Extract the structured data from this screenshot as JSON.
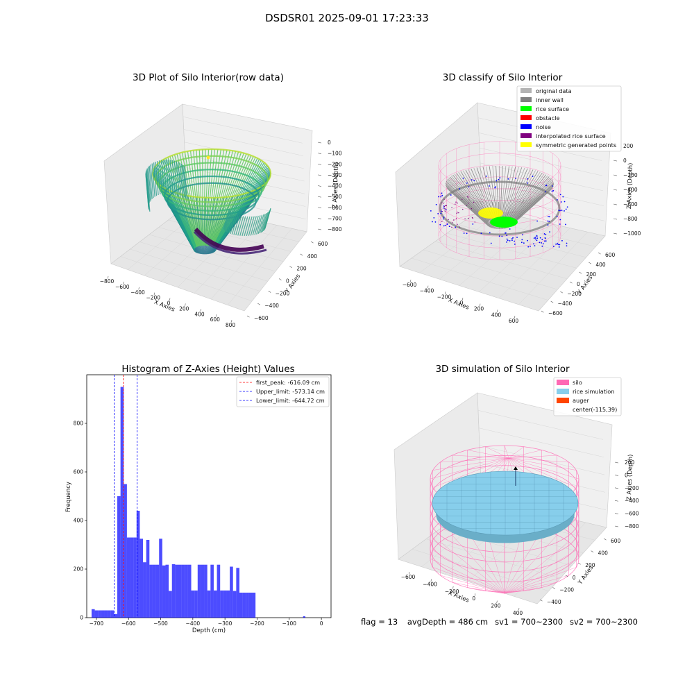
{
  "suptitle": "DSDSR01 2025-09-01 17:23:33",
  "footer": {
    "flag": "flag = 13",
    "avg_depth": "avgDepth = 486 cm",
    "sv1": "sv1 = 700~2300",
    "sv2": "sv2 = 700~2300"
  },
  "chart_data": [
    {
      "type": "scatter",
      "projection": "3d",
      "title": "3D Plot of Silo Interior(row data)",
      "xlabel": "X Axies",
      "ylabel": "Y Axies",
      "zlabel": "Z Axies (Depth)",
      "x_ticks": [
        "−800",
        "−600",
        "−400",
        "−200",
        "0",
        "200",
        "400",
        "600",
        "800"
      ],
      "y_ticks": [
        "−600",
        "−400",
        "−200",
        "0",
        "200",
        "400",
        "600"
      ],
      "z_ticks": [
        "0",
        "−100",
        "−200",
        "−300",
        "−400",
        "−500",
        "−600",
        "−700",
        "−800"
      ],
      "xlim": [
        -800,
        800
      ],
      "ylim": [
        -600,
        600
      ],
      "zlim": [
        -800,
        0
      ],
      "colormap": "viridis"
    },
    {
      "type": "scatter",
      "projection": "3d",
      "title": "3D classify of Silo Interior",
      "legend": [
        {
          "label": "original data",
          "color": "#b3b3b3"
        },
        {
          "label": "inner wall",
          "color": "#808080"
        },
        {
          "label": "rice surface",
          "color": "#00ff00"
        },
        {
          "label": "obstacle",
          "color": "#ff0000"
        },
        {
          "label": "noise",
          "color": "#0000ff"
        },
        {
          "label": "interpolated rice surface",
          "color": "#800080"
        },
        {
          "label": "symmetric generated points",
          "color": "#ffff00"
        }
      ],
      "legend_position": "upper right",
      "xlabel": "X Axies",
      "ylabel": "Y Axies",
      "zlabel": "Z Axies (Depth)",
      "x_ticks": [
        "−600",
        "−400",
        "−200",
        "0",
        "200",
        "400",
        "600"
      ],
      "y_ticks": [
        "−600",
        "−400",
        "−200",
        "0",
        "200",
        "400",
        "600"
      ],
      "z_ticks": [
        "200",
        "0",
        "−200",
        "−400",
        "−600",
        "−800",
        "−1000"
      ],
      "xlim": [
        -700,
        700
      ],
      "ylim": [
        -700,
        700
      ],
      "zlim": [
        -1000,
        300
      ]
    },
    {
      "type": "histogram",
      "title": "Histogram of Z-Axies (Height) Values",
      "xlabel": "Depth (cm)",
      "ylabel": "Frequency",
      "xlim": [
        -730,
        30
      ],
      "ylim": [
        0,
        1000
      ],
      "x_ticks": [
        -700,
        -600,
        -500,
        -400,
        -300,
        -200,
        -100,
        0
      ],
      "y_ticks": [
        0,
        200,
        400,
        600,
        800
      ],
      "bar_color": "#0000ff",
      "bins": [
        [
          -715,
          -705,
          35
        ],
        [
          -705,
          -695,
          30
        ],
        [
          -695,
          -685,
          30
        ],
        [
          -685,
          -675,
          30
        ],
        [
          -675,
          -665,
          30
        ],
        [
          -665,
          -655,
          30
        ],
        [
          -655,
          -645,
          30
        ],
        [
          -645,
          -635,
          15
        ],
        [
          -635,
          -625,
          500
        ],
        [
          -625,
          -615,
          950
        ],
        [
          -615,
          -605,
          550
        ],
        [
          -605,
          -595,
          330
        ],
        [
          -595,
          -585,
          330
        ],
        [
          -585,
          -575,
          330
        ],
        [
          -575,
          -565,
          440
        ],
        [
          -565,
          -555,
          325
        ],
        [
          -555,
          -545,
          228
        ],
        [
          -545,
          -535,
          320
        ],
        [
          -535,
          -525,
          218
        ],
        [
          -525,
          -515,
          218
        ],
        [
          -515,
          -505,
          218
        ],
        [
          -505,
          -495,
          325
        ],
        [
          -495,
          -485,
          215
        ],
        [
          -485,
          -475,
          218
        ],
        [
          -475,
          -465,
          110
        ],
        [
          -465,
          -455,
          220
        ],
        [
          -455,
          -445,
          218
        ],
        [
          -445,
          -435,
          218
        ],
        [
          -435,
          -425,
          218
        ],
        [
          -425,
          -415,
          218
        ],
        [
          -415,
          -405,
          218
        ],
        [
          -405,
          -395,
          112
        ],
        [
          -395,
          -385,
          112
        ],
        [
          -385,
          -375,
          218
        ],
        [
          -375,
          -365,
          218
        ],
        [
          -365,
          -355,
          218
        ],
        [
          -355,
          -345,
          112
        ],
        [
          -345,
          -335,
          218
        ],
        [
          -335,
          -325,
          112
        ],
        [
          -325,
          -315,
          218
        ],
        [
          -315,
          -305,
          112
        ],
        [
          -305,
          -295,
          112
        ],
        [
          -295,
          -285,
          112
        ],
        [
          -285,
          -275,
          210
        ],
        [
          -275,
          -265,
          110
        ],
        [
          -265,
          -255,
          205
        ],
        [
          -255,
          -245,
          103
        ],
        [
          -245,
          -235,
          103
        ],
        [
          -235,
          -225,
          103
        ],
        [
          -225,
          -215,
          103
        ],
        [
          -215,
          -205,
          103
        ],
        [
          -57,
          -50,
          6
        ]
      ],
      "vlines": [
        {
          "label": "first_peak: -616.09 cm",
          "x": -616.09,
          "color": "#ff0000"
        },
        {
          "label": "Upper_limit: -573.14 cm",
          "x": -573.14,
          "color": "#0000ff"
        },
        {
          "label": "Lower_limit: -644.72 cm",
          "x": -644.72,
          "color": "#0000ff"
        }
      ],
      "legend_position": "upper right"
    },
    {
      "type": "surface",
      "projection": "3d",
      "title": "3D simulation of Silo Interior",
      "legend": [
        {
          "label": "silo",
          "color": "#ff69b4"
        },
        {
          "label": "rice simulation",
          "color": "#87ceeb"
        },
        {
          "label": "auger",
          "color": "#ff4500"
        },
        {
          "label": "center(-115,39)",
          "color": ""
        }
      ],
      "legend_position": "upper right",
      "xlabel": "X Axies",
      "ylabel": "Y Axies",
      "zlabel": "Z Axies (Depth)",
      "x_ticks": [
        "−600",
        "−400",
        "−200",
        "0",
        "200",
        "400"
      ],
      "y_ticks": [
        "−400",
        "−200",
        "0",
        "200",
        "400",
        "600"
      ],
      "z_ticks": [
        "200",
        "0",
        "−200",
        "−400",
        "−600",
        "−800"
      ],
      "xlim": [
        -700,
        500
      ],
      "ylim": [
        -500,
        700
      ],
      "zlim": [
        -900,
        300
      ]
    }
  ]
}
